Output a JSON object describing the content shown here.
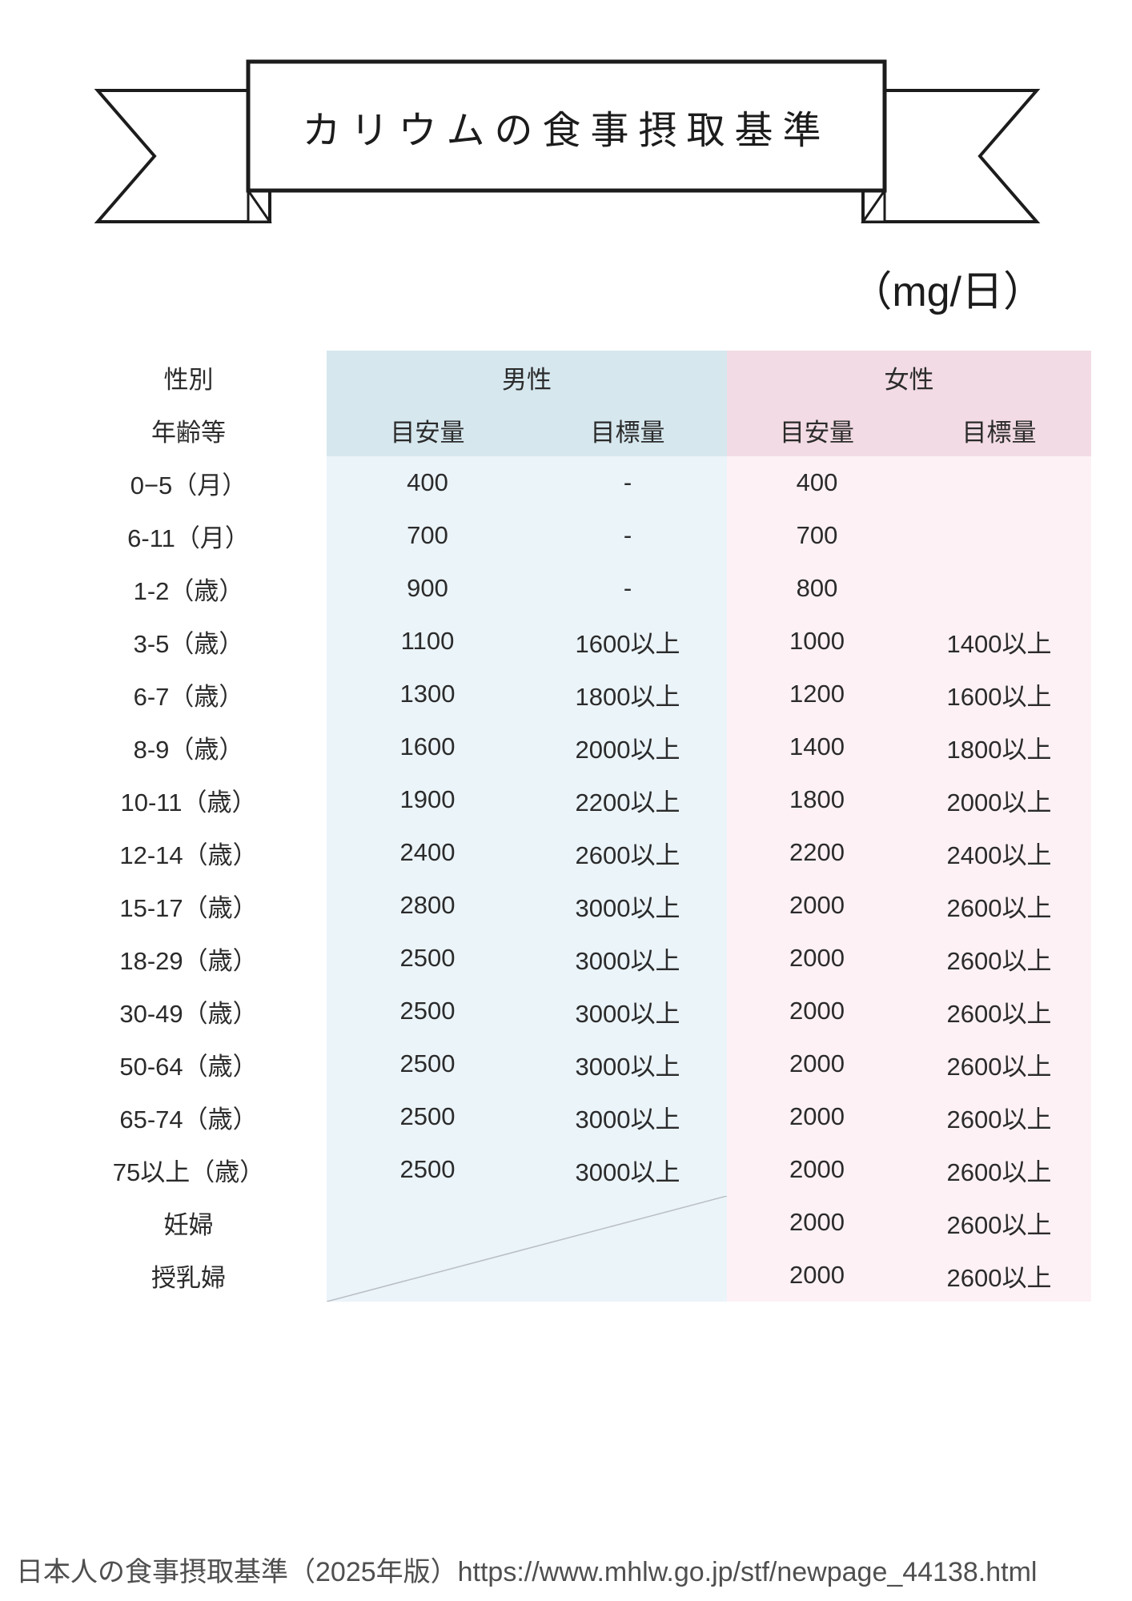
{
  "title": "カリウムの食事摂取基準",
  "unit": "（mg/日）",
  "table": {
    "header": {
      "gender_label": "性別",
      "male": "男性",
      "female": "女性",
      "age_label": "年齢等",
      "ai_label": "目安量",
      "dg_label": "目標量"
    },
    "rows": [
      {
        "age": "0−5（月）",
        "m_ai": "400",
        "m_dg": "-",
        "f_ai": "400",
        "f_dg": ""
      },
      {
        "age": "6-11（月）",
        "m_ai": "700",
        "m_dg": "-",
        "f_ai": "700",
        "f_dg": ""
      },
      {
        "age": "1-2（歳）",
        "m_ai": "900",
        "m_dg": "-",
        "f_ai": "800",
        "f_dg": ""
      },
      {
        "age": "3-5（歳）",
        "m_ai": "1100",
        "m_dg": "1600以上",
        "f_ai": "1000",
        "f_dg": "1400以上"
      },
      {
        "age": "6-7（歳）",
        "m_ai": "1300",
        "m_dg": "1800以上",
        "f_ai": "1200",
        "f_dg": "1600以上"
      },
      {
        "age": "8-9（歳）",
        "m_ai": "1600",
        "m_dg": "2000以上",
        "f_ai": "1400",
        "f_dg": "1800以上"
      },
      {
        "age": "10-11（歳）",
        "m_ai": "1900",
        "m_dg": "2200以上",
        "f_ai": "1800",
        "f_dg": "2000以上"
      },
      {
        "age": "12-14（歳）",
        "m_ai": "2400",
        "m_dg": "2600以上",
        "f_ai": "2200",
        "f_dg": "2400以上"
      },
      {
        "age": "15-17（歳）",
        "m_ai": "2800",
        "m_dg": "3000以上",
        "f_ai": "2000",
        "f_dg": "2600以上"
      },
      {
        "age": "18-29（歳）",
        "m_ai": "2500",
        "m_dg": "3000以上",
        "f_ai": "2000",
        "f_dg": "2600以上"
      },
      {
        "age": "30-49（歳）",
        "m_ai": "2500",
        "m_dg": "3000以上",
        "f_ai": "2000",
        "f_dg": "2600以上"
      },
      {
        "age": "50-64（歳）",
        "m_ai": "2500",
        "m_dg": "3000以上",
        "f_ai": "2000",
        "f_dg": "2600以上"
      },
      {
        "age": "65-74（歳）",
        "m_ai": "2500",
        "m_dg": "3000以上",
        "f_ai": "2000",
        "f_dg": "2600以上"
      },
      {
        "age": "75以上（歳）",
        "m_ai": "2500",
        "m_dg": "3000以上",
        "f_ai": "2000",
        "f_dg": "2600以上"
      }
    ],
    "special_rows": [
      {
        "age": "妊婦",
        "f_ai": "2000",
        "f_dg": "2600以上"
      },
      {
        "age": "授乳婦",
        "f_ai": "2000",
        "f_dg": "2600以上"
      }
    ]
  },
  "footer": "日本人の食事摂取基準（2025年版）https://www.mhlw.go.jp/stf/newpage_44138.html",
  "colors": {
    "line": "#1c1c1c",
    "ink": "#2b2b2b",
    "male_header": "#d6e7ee",
    "male_data": "#ebf4f9",
    "female_header": "#f2dbe4",
    "female_data": "#fdf1f5"
  }
}
